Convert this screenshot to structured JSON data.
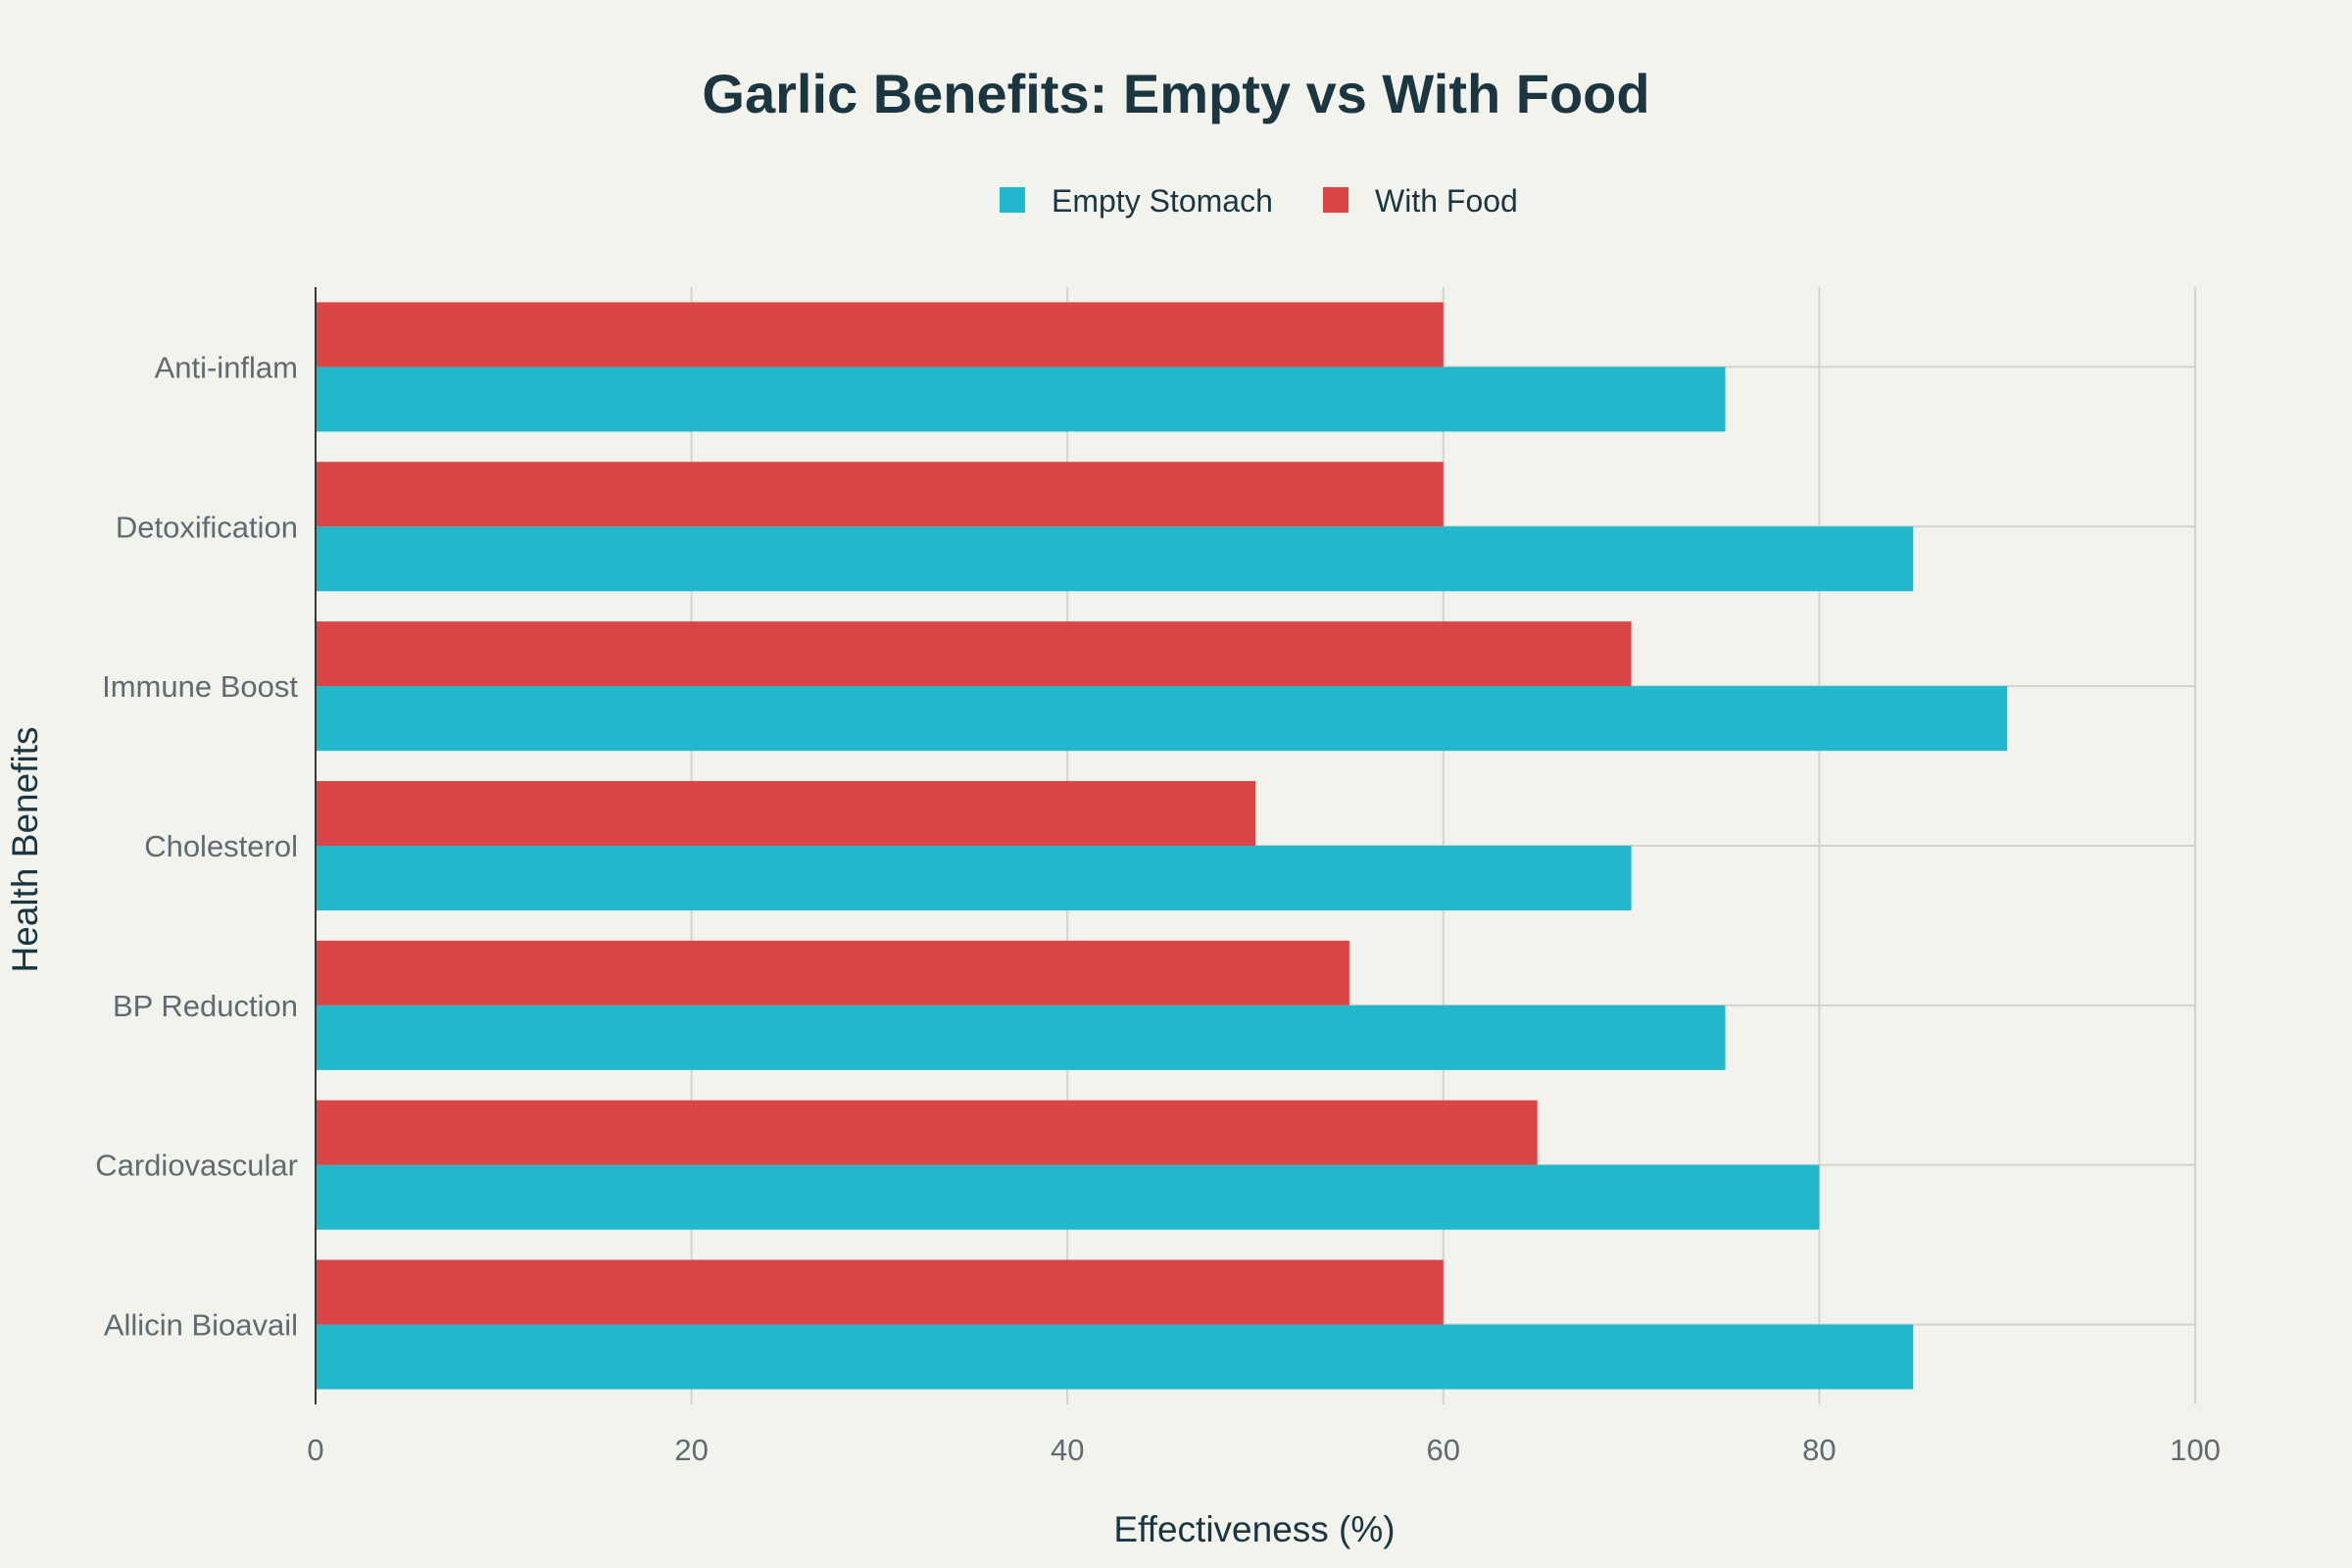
{
  "chart_data": {
    "type": "bar",
    "orientation": "horizontal",
    "title": "Garlic Benefits: Empty vs With Food",
    "xlabel": "Effectiveness (%)",
    "ylabel": "Health Benefits",
    "xlim": [
      0,
      100
    ],
    "x_ticks": [
      "0",
      "20",
      "40",
      "60",
      "80",
      "100"
    ],
    "categories": [
      "Allicin Bioavail",
      "Cardiovascular",
      "BP Reduction",
      "Cholesterol",
      "Immune Boost",
      "Detoxification",
      "Anti-inflam"
    ],
    "series": [
      {
        "name": "Empty Stomach",
        "color": "#21b8cc",
        "values": [
          85,
          80,
          75,
          70,
          90,
          85,
          75
        ]
      },
      {
        "name": "With Food",
        "color": "#db4548",
        "values": [
          60,
          65,
          55,
          50,
          70,
          60,
          60
        ]
      }
    ],
    "grid": true,
    "legend_position": "top-center"
  }
}
